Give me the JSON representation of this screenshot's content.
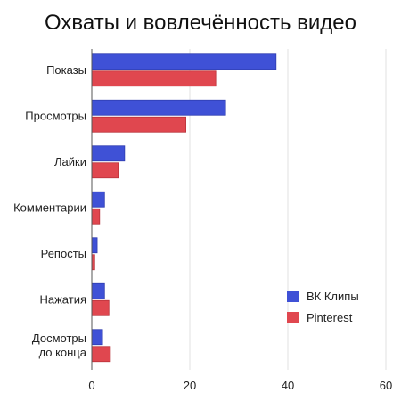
{
  "title": "Охваты и вовлечённость видео",
  "chart_data": {
    "type": "bar",
    "orientation": "horizontal",
    "title": "Охваты и вовлечённость видео",
    "categories": [
      "Показы",
      "Просмотры",
      "Лайки",
      "Комментарии",
      "Репосты",
      "Нажатия",
      "Досмотры до конца"
    ],
    "category_lines": [
      [
        "Показы"
      ],
      [
        "Просмотры"
      ],
      [
        "Лайки"
      ],
      [
        "Комментарии"
      ],
      [
        "Репосты"
      ],
      [
        "Нажатия"
      ],
      [
        "Досмотры",
        "до конца"
      ]
    ],
    "series": [
      {
        "name": "ВК Клипы",
        "color": "#3f51d6",
        "values": [
          37.6,
          27.3,
          6.7,
          2.6,
          1.1,
          2.6,
          2.2
        ]
      },
      {
        "name": "Pinterest",
        "color": "#e0474f",
        "values": [
          25.3,
          19.2,
          5.4,
          1.6,
          0.6,
          3.5,
          3.8
        ]
      }
    ],
    "xlim": [
      0,
      60
    ],
    "xticks": [
      0,
      20,
      40,
      60
    ],
    "xlabel": "",
    "ylabel": "",
    "grid": true,
    "legend_position": "bottom-right"
  }
}
